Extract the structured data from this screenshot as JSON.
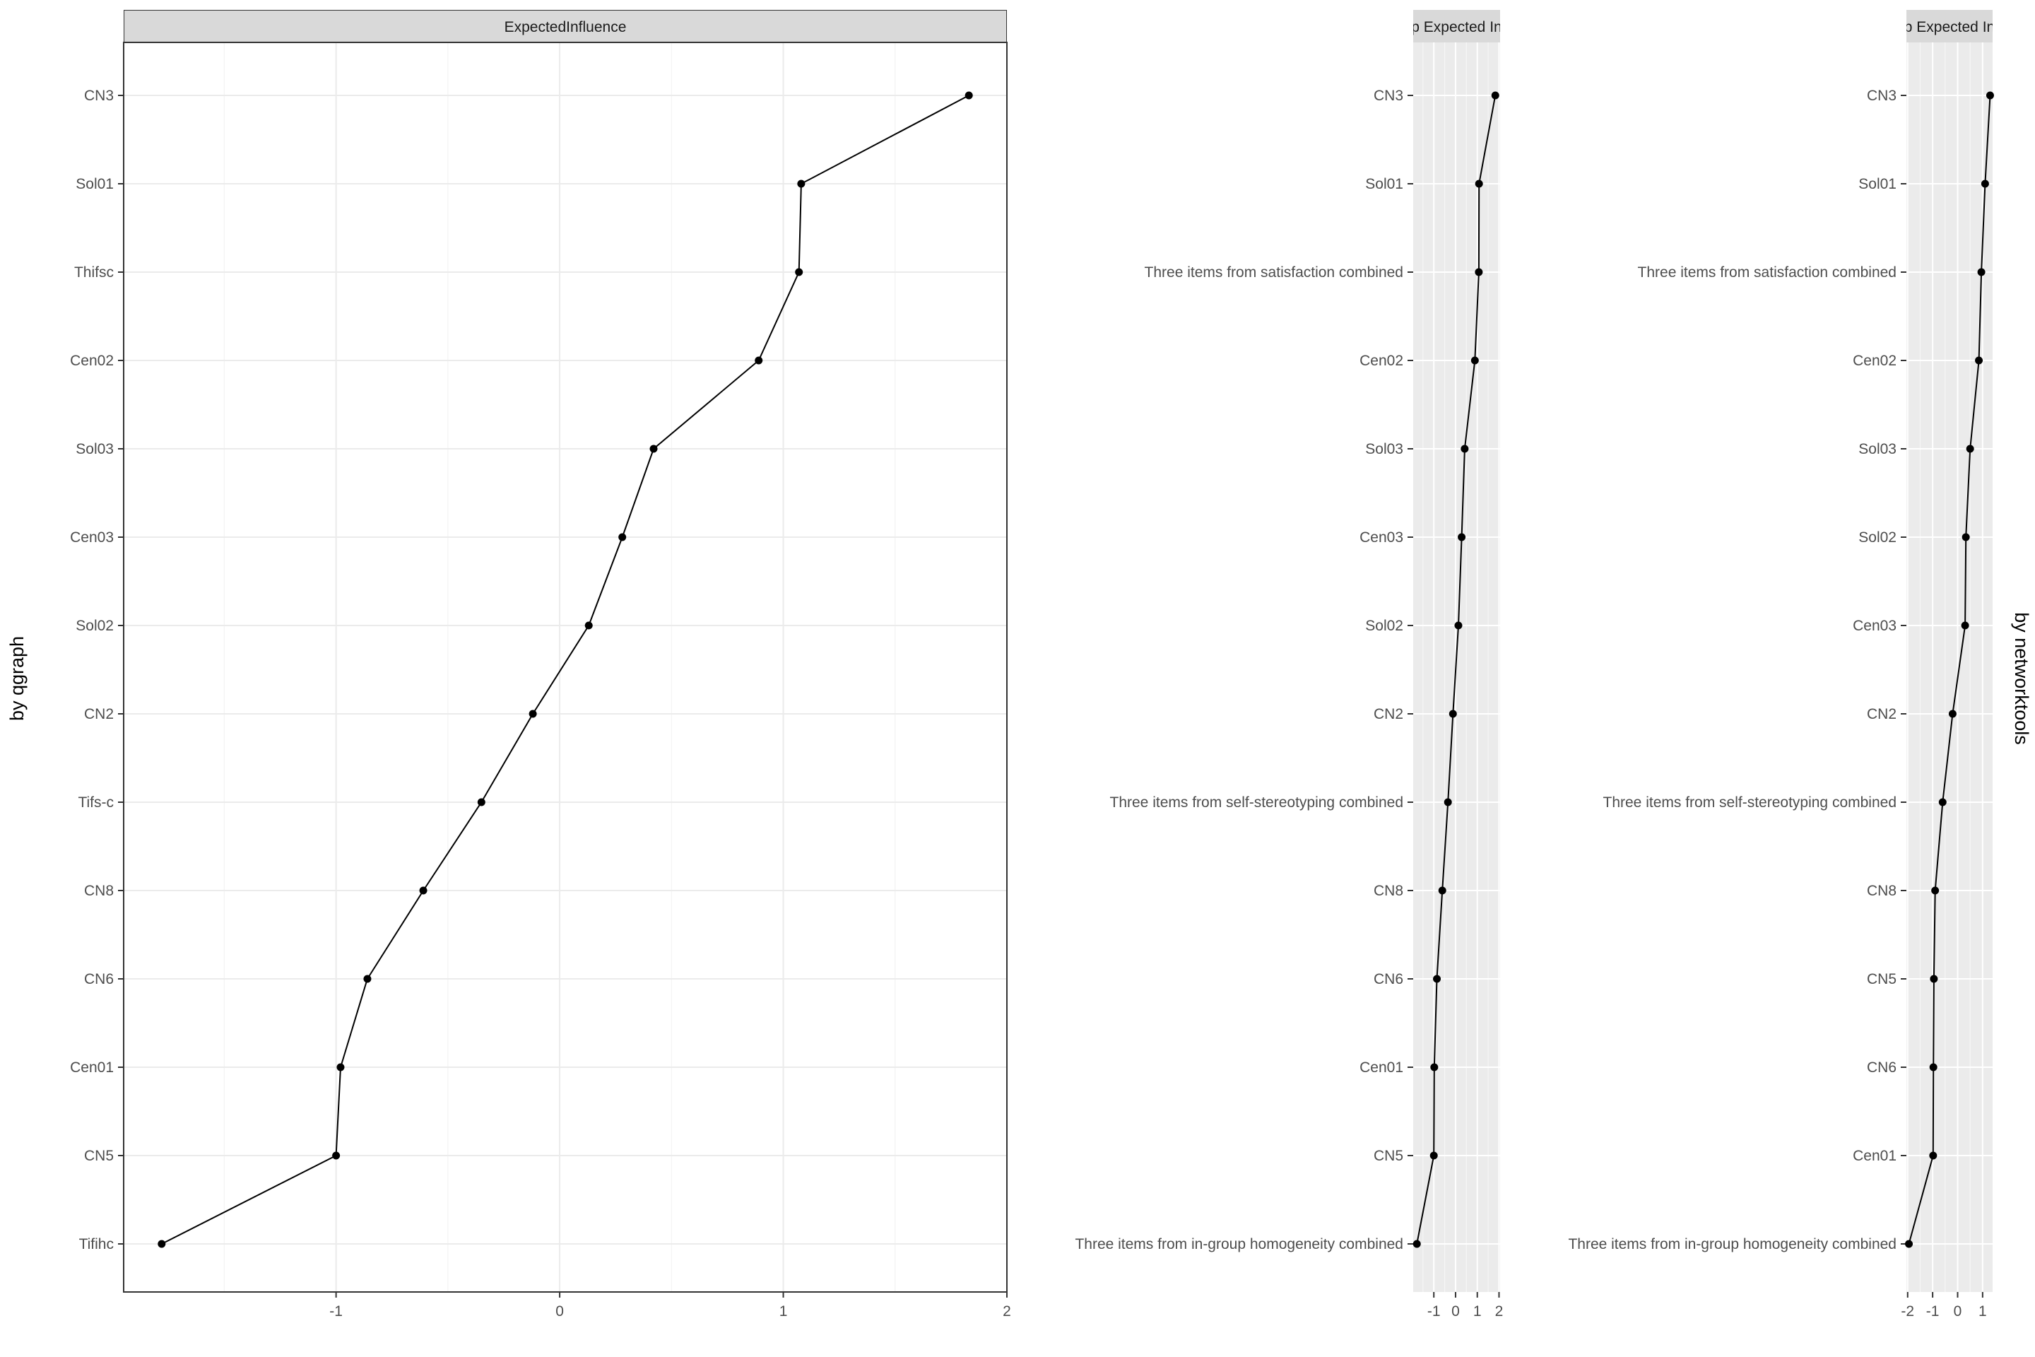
{
  "chart_data": [
    {
      "type": "line",
      "panel_title": "ExpectedInfluence",
      "side_label": "by qgraph",
      "theme": "bw",
      "grid": true,
      "xlim": [
        -1.95,
        2.0
      ],
      "x_ticks": [
        -1,
        0,
        1,
        2
      ],
      "categories": [
        "CN3",
        "Sol01",
        "Thifsc",
        "Cen02",
        "Sol03",
        "Cen03",
        "Sol02",
        "CN2",
        "Tifs-c",
        "CN8",
        "CN6",
        "Cen01",
        "CN5",
        "Tifihc"
      ],
      "values": [
        1.83,
        1.08,
        1.07,
        0.89,
        0.42,
        0.28,
        0.13,
        -0.12,
        -0.35,
        -0.61,
        -0.86,
        -0.98,
        -1.0,
        -1.78
      ]
    },
    {
      "type": "line",
      "panel_title": "p Expected In",
      "side_label": "",
      "theme": "gray",
      "grid": true,
      "xlim": [
        -1.95,
        2.05
      ],
      "x_ticks": [
        -1,
        0,
        1,
        2
      ],
      "categories": [
        "CN3",
        "Sol01",
        "Three items from satisfaction combined",
        "Cen02",
        "Sol03",
        "Cen03",
        "Sol02",
        "CN2",
        "Three items from self-stereotyping combined",
        "CN8",
        "CN6",
        "Cen01",
        "CN5",
        "Three items from in-group homogeneity combined"
      ],
      "values": [
        1.83,
        1.08,
        1.07,
        0.89,
        0.42,
        0.28,
        0.13,
        -0.12,
        -0.35,
        -0.61,
        -0.86,
        -0.98,
        -1.0,
        -1.78
      ]
    },
    {
      "type": "line",
      "panel_title": "p Expected In",
      "side_label": "by networktools",
      "theme": "gray",
      "grid": true,
      "xlim": [
        -2.05,
        1.4
      ],
      "x_ticks": [
        -2,
        -1,
        0,
        1
      ],
      "categories": [
        "CN3",
        "Sol01",
        "Three items from satisfaction combined",
        "Cen02",
        "Sol03",
        "Sol02",
        "Cen03",
        "CN2",
        "Three items from self-stereotyping combined",
        "CN8",
        "CN5",
        "CN6",
        "Cen01",
        "Three items from in-group homogeneity combined"
      ],
      "values": [
        1.3,
        1.1,
        0.95,
        0.85,
        0.5,
        0.33,
        0.3,
        -0.2,
        -0.6,
        -0.9,
        -0.95,
        -0.97,
        -0.98,
        -1.95
      ]
    }
  ]
}
